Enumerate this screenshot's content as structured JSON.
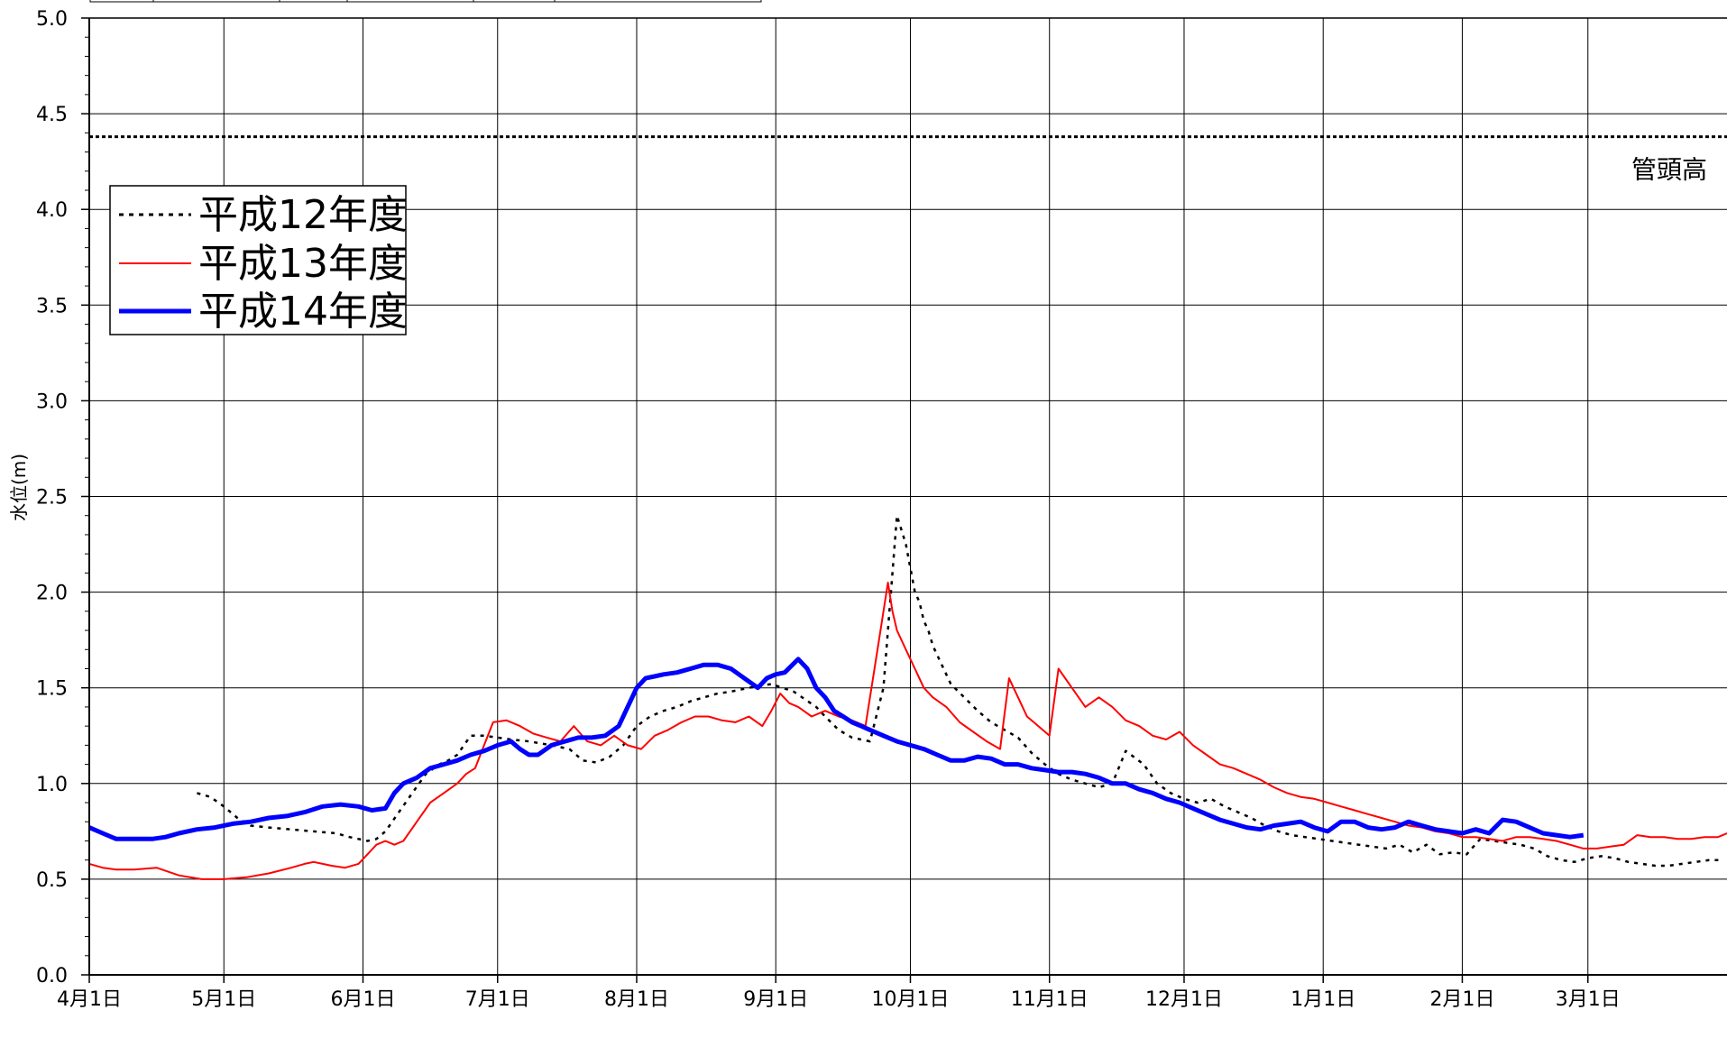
{
  "chart_data": {
    "type": "line",
    "ylabel": "水位(m)",
    "ylim": [
      0,
      5
    ],
    "y_ticks": [
      "0.0",
      "0.5",
      "1.0",
      "1.5",
      "2.0",
      "2.5",
      "3.0",
      "3.5",
      "4.0",
      "4.5",
      "5.0"
    ],
    "x_ticks": [
      "4月1日",
      "5月1日",
      "6月1日",
      "7月1日",
      "8月1日",
      "9月1日",
      "10月1日",
      "11月1日",
      "12月1日",
      "1月1日",
      "2月1日",
      "3月1日"
    ],
    "xlim": [
      0,
      365
    ],
    "grid": true,
    "legend_position": "upper-left",
    "reference_line": {
      "label": "管頭高",
      "value": 4.38
    },
    "series": [
      {
        "name": "平成12年度",
        "color": "#000000",
        "style": "dotted",
        "x": [
          24,
          27,
          30,
          33,
          36,
          40,
          45,
          50,
          55,
          58,
          60,
          62,
          64,
          66,
          69,
          72,
          75,
          78,
          80,
          82,
          85,
          88,
          91,
          94,
          98,
          103,
          107,
          110,
          113,
          116,
          119,
          122,
          125,
          128,
          131,
          134,
          137,
          140,
          143,
          147,
          152,
          157,
          162,
          164,
          167,
          170,
          174,
          177,
          180,
          182,
          184,
          185,
          186,
          187,
          188,
          190,
          192,
          195,
          198,
          201,
          204,
          207,
          210,
          213,
          216,
          219,
          222,
          225,
          228,
          231,
          235,
          238,
          241,
          244,
          247,
          250,
          253,
          256,
          259,
          262,
          265,
          268,
          271,
          274,
          277,
          280,
          283,
          286,
          289,
          292,
          295,
          298,
          301,
          304,
          307,
          310,
          313,
          316,
          319,
          322,
          325,
          328,
          331,
          334,
          337,
          340,
          343,
          346,
          349,
          352,
          355,
          358,
          361,
          364
        ],
        "y": [
          0.95,
          0.93,
          0.88,
          0.82,
          0.78,
          0.77,
          0.76,
          0.75,
          0.74,
          0.72,
          0.71,
          0.7,
          0.71,
          0.75,
          0.85,
          0.95,
          1.05,
          1.1,
          1.12,
          1.15,
          1.25,
          1.25,
          1.24,
          1.23,
          1.22,
          1.2,
          1.18,
          1.12,
          1.11,
          1.14,
          1.2,
          1.3,
          1.35,
          1.38,
          1.4,
          1.43,
          1.45,
          1.47,
          1.48,
          1.5,
          1.52,
          1.48,
          1.4,
          1.35,
          1.28,
          1.24,
          1.22,
          1.5,
          2.4,
          2.25,
          2.0,
          1.95,
          1.85,
          1.8,
          1.72,
          1.62,
          1.52,
          1.45,
          1.38,
          1.32,
          1.28,
          1.24,
          1.16,
          1.1,
          1.05,
          1.02,
          1.0,
          0.98,
          1.0,
          1.17,
          1.1,
          1.0,
          0.95,
          0.92,
          0.9,
          0.92,
          0.88,
          0.85,
          0.82,
          0.78,
          0.75,
          0.73,
          0.72,
          0.71,
          0.7,
          0.69,
          0.68,
          0.67,
          0.66,
          0.68,
          0.64,
          0.68,
          0.63,
          0.64,
          0.63,
          0.71,
          0.7,
          0.69,
          0.68,
          0.66,
          0.62,
          0.6,
          0.59,
          0.61,
          0.62,
          0.61,
          0.59,
          0.58,
          0.57,
          0.57,
          0.58,
          0.59,
          0.6,
          0.6
        ]
      },
      {
        "name": "平成13年度",
        "color": "#ff0000",
        "style": "solid",
        "x": [
          0,
          3,
          6,
          10,
          15,
          20,
          25,
          30,
          35,
          40,
          45,
          48,
          50,
          52,
          54,
          57,
          60,
          62,
          64,
          66,
          68,
          70,
          73,
          76,
          79,
          82,
          84,
          86,
          88,
          90,
          93,
          96,
          99,
          102,
          105,
          108,
          111,
          114,
          117,
          120,
          123,
          126,
          129,
          132,
          135,
          138,
          141,
          144,
          147,
          150,
          152,
          154,
          156,
          158,
          161,
          164,
          167,
          170,
          173,
          176,
          178,
          179,
          180,
          182,
          184,
          186,
          188,
          191,
          194,
          197,
          200,
          203,
          205,
          207,
          209,
          212,
          214,
          216,
          219,
          222,
          225,
          228,
          231,
          234,
          237,
          240,
          243,
          246,
          249,
          252,
          255,
          258,
          261,
          264,
          267,
          270,
          273,
          276,
          279,
          282,
          285,
          288,
          291,
          294,
          297,
          300,
          303,
          306,
          309,
          312,
          315,
          318,
          321,
          324,
          327,
          330,
          333,
          336,
          339,
          342,
          345,
          348,
          351,
          354,
          357,
          360,
          363,
          365
        ],
        "y": [
          0.58,
          0.56,
          0.55,
          0.55,
          0.56,
          0.52,
          0.5,
          0.5,
          0.51,
          0.53,
          0.56,
          0.58,
          0.59,
          0.58,
          0.57,
          0.56,
          0.58,
          0.63,
          0.68,
          0.7,
          0.68,
          0.7,
          0.8,
          0.9,
          0.95,
          1.0,
          1.05,
          1.08,
          1.2,
          1.32,
          1.33,
          1.3,
          1.26,
          1.24,
          1.22,
          1.3,
          1.22,
          1.2,
          1.25,
          1.2,
          1.18,
          1.25,
          1.28,
          1.32,
          1.35,
          1.35,
          1.33,
          1.32,
          1.35,
          1.3,
          1.38,
          1.47,
          1.42,
          1.4,
          1.35,
          1.38,
          1.35,
          1.33,
          1.3,
          1.75,
          2.05,
          1.9,
          1.8,
          1.7,
          1.6,
          1.5,
          1.45,
          1.4,
          1.32,
          1.27,
          1.22,
          1.18,
          1.55,
          1.45,
          1.35,
          1.29,
          1.25,
          1.6,
          1.5,
          1.4,
          1.45,
          1.4,
          1.33,
          1.3,
          1.25,
          1.23,
          1.27,
          1.2,
          1.15,
          1.1,
          1.08,
          1.05,
          1.02,
          0.98,
          0.95,
          0.93,
          0.92,
          0.9,
          0.88,
          0.86,
          0.84,
          0.82,
          0.8,
          0.78,
          0.77,
          0.75,
          0.74,
          0.72,
          0.72,
          0.71,
          0.7,
          0.72,
          0.72,
          0.71,
          0.7,
          0.68,
          0.66,
          0.66,
          0.67,
          0.68,
          0.73,
          0.72,
          0.72,
          0.71,
          0.71,
          0.72,
          0.72,
          0.74
        ]
      },
      {
        "name": "平成14年度",
        "color": "#0000ff",
        "style": "solid",
        "x": [
          0,
          3,
          6,
          10,
          14,
          17,
          20,
          24,
          28,
          32,
          36,
          40,
          44,
          48,
          52,
          56,
          60,
          63,
          66,
          68,
          70,
          73,
          76,
          79,
          82,
          85,
          88,
          91,
          94,
          96,
          98,
          100,
          103,
          106,
          109,
          112,
          115,
          118,
          120,
          122,
          124,
          126,
          128,
          131,
          134,
          137,
          140,
          143,
          146,
          149,
          151,
          153,
          155,
          158,
          160,
          162,
          164,
          166,
          168,
          170,
          172,
          174,
          177,
          180,
          183,
          186,
          189,
          192,
          195,
          198,
          201,
          204,
          207,
          210,
          213,
          216,
          219,
          222,
          225,
          228,
          231,
          234,
          237,
          240,
          243,
          246,
          249,
          252,
          255,
          258,
          261,
          264,
          267,
          270,
          273,
          276,
          279,
          282,
          285,
          288,
          291,
          294,
          297,
          300,
          303,
          306,
          309,
          312,
          315,
          318,
          321,
          324,
          327,
          330,
          333
        ],
        "y": [
          0.77,
          0.74,
          0.71,
          0.71,
          0.71,
          0.72,
          0.74,
          0.76,
          0.77,
          0.79,
          0.8,
          0.82,
          0.83,
          0.85,
          0.88,
          0.89,
          0.88,
          0.86,
          0.87,
          0.95,
          1.0,
          1.03,
          1.08,
          1.1,
          1.12,
          1.15,
          1.17,
          1.2,
          1.22,
          1.18,
          1.15,
          1.15,
          1.2,
          1.22,
          1.24,
          1.24,
          1.25,
          1.3,
          1.4,
          1.5,
          1.55,
          1.56,
          1.57,
          1.58,
          1.6,
          1.62,
          1.62,
          1.6,
          1.55,
          1.5,
          1.55,
          1.57,
          1.58,
          1.65,
          1.6,
          1.5,
          1.45,
          1.38,
          1.35,
          1.32,
          1.3,
          1.28,
          1.25,
          1.22,
          1.2,
          1.18,
          1.15,
          1.12,
          1.12,
          1.14,
          1.13,
          1.1,
          1.1,
          1.08,
          1.07,
          1.06,
          1.06,
          1.05,
          1.03,
          1.0,
          1.0,
          0.97,
          0.95,
          0.92,
          0.9,
          0.87,
          0.84,
          0.81,
          0.79,
          0.77,
          0.76,
          0.78,
          0.79,
          0.8,
          0.77,
          0.75,
          0.8,
          0.8,
          0.77,
          0.76,
          0.77,
          0.8,
          0.78,
          0.76,
          0.75,
          0.74,
          0.76,
          0.74,
          0.81,
          0.8,
          0.77,
          0.74,
          0.73,
          0.72,
          0.73
        ]
      }
    ]
  }
}
